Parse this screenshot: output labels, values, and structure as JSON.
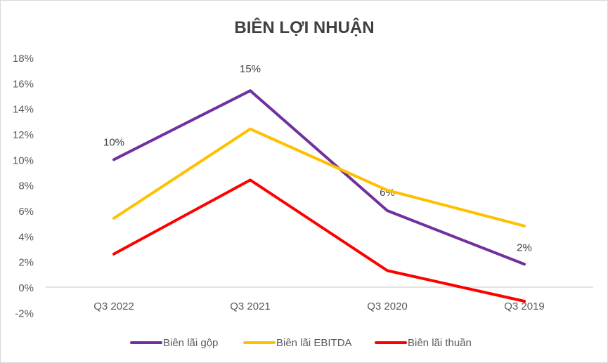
{
  "chart_data": {
    "type": "line",
    "title": "BIÊN LỢI NHUẬN",
    "categories": [
      "Q3 2022",
      "Q3 2021",
      "Q3 2020",
      "Q3 2019"
    ],
    "ylim": [
      -2,
      18
    ],
    "yticks": [
      "-2%",
      "0%",
      "2%",
      "4%",
      "6%",
      "8%",
      "10%",
      "12%",
      "14%",
      "16%",
      "18%"
    ],
    "ytick_values": [
      -2,
      0,
      2,
      4,
      6,
      8,
      10,
      12,
      14,
      16,
      18
    ],
    "grid": false,
    "legend": "bottom",
    "series": [
      {
        "name": "Biên lãi gộp",
        "color": "#7030A0",
        "values": [
          10.0,
          15.4,
          6.0,
          1.8
        ],
        "labels": [
          "10%",
          "15%",
          "6%",
          "2%"
        ]
      },
      {
        "name": "Biên lãi EBITDA",
        "color": "#FFC000",
        "values": [
          5.4,
          12.4,
          7.6,
          4.8
        ]
      },
      {
        "name": "Biên lãi thuần",
        "color": "#FF0000",
        "values": [
          2.6,
          8.4,
          1.3,
          -1.1
        ]
      }
    ]
  }
}
